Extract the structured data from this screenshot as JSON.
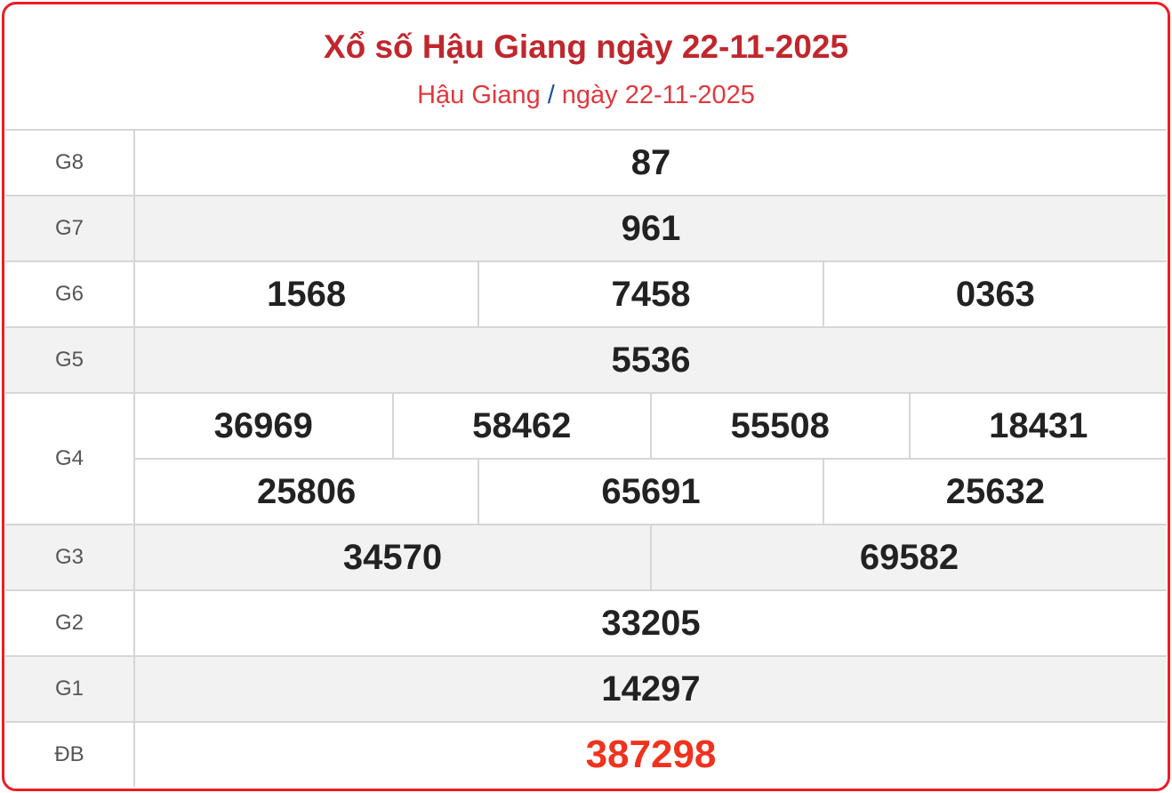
{
  "header": {
    "title": "Xổ số Hậu Giang ngày 22-11-2025",
    "breadcrumb_province": "Hậu Giang",
    "breadcrumb_sep": "/",
    "breadcrumb_date": "ngày 22-11-2025"
  },
  "prizes": [
    {
      "label": "G8",
      "rows": [
        [
          "87"
        ]
      ]
    },
    {
      "label": "G7",
      "rows": [
        [
          "961"
        ]
      ]
    },
    {
      "label": "G6",
      "rows": [
        [
          "1568",
          "7458",
          "0363"
        ]
      ]
    },
    {
      "label": "G5",
      "rows": [
        [
          "5536"
        ]
      ]
    },
    {
      "label": "G4",
      "rows": [
        [
          "36969",
          "58462",
          "55508",
          "18431"
        ],
        [
          "25806",
          "65691",
          "25632"
        ]
      ]
    },
    {
      "label": "G3",
      "rows": [
        [
          "34570",
          "69582"
        ]
      ]
    },
    {
      "label": "G2",
      "rows": [
        [
          "33205"
        ]
      ]
    },
    {
      "label": "G1",
      "rows": [
        [
          "14297"
        ]
      ]
    },
    {
      "label": "ĐB",
      "rows": [
        [
          "387298"
        ]
      ]
    }
  ],
  "colors": {
    "border": "#ed1c24",
    "title": "#c0272d",
    "special": "#f0321e",
    "slash": "#1a4f9c"
  }
}
